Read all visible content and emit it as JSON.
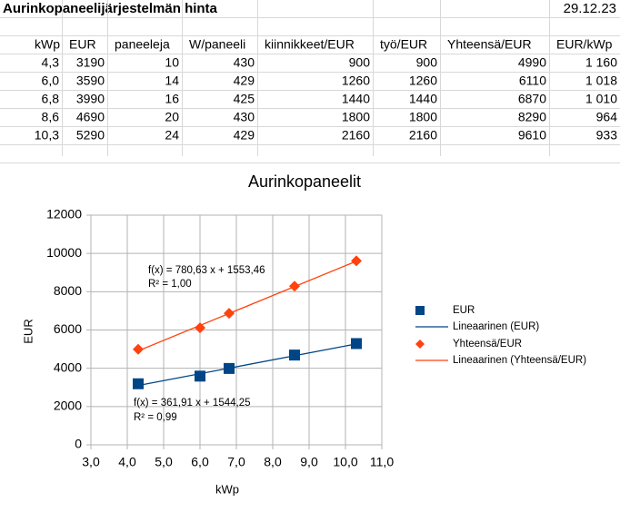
{
  "sheet": {
    "title": "Aurinkopaneelijärjestelmän hinta",
    "date": "29.12.23",
    "headers": [
      "kWp",
      "EUR",
      "paneeleja",
      "W/paneeli",
      "kiinnikkeet/EUR",
      "työ/EUR",
      "Yhteensä/EUR",
      "EUR/kWp"
    ],
    "rows": [
      [
        "4,3",
        "3190",
        "10",
        "430",
        "900",
        "900",
        "4990",
        "1 160"
      ],
      [
        "6,0",
        "3590",
        "14",
        "429",
        "1260",
        "1260",
        "6110",
        "1 018"
      ],
      [
        "6,8",
        "3990",
        "16",
        "425",
        "1440",
        "1440",
        "6870",
        "1 010"
      ],
      [
        "8,6",
        "4690",
        "20",
        "430",
        "1800",
        "1800",
        "8290",
        "964"
      ],
      [
        "10,3",
        "5290",
        "24",
        "429",
        "2160",
        "2160",
        "9610",
        "933"
      ]
    ]
  },
  "chart_data": {
    "type": "scatter",
    "title": "Aurinkopaneelit",
    "xlabel": "kWp",
    "ylabel": "EUR",
    "grid": true,
    "x": [
      4.3,
      6.0,
      6.8,
      8.6,
      10.3
    ],
    "xlim": [
      3,
      11
    ],
    "xticks": [
      {
        "value": 3,
        "label": "3,0"
      },
      {
        "value": 4,
        "label": "4,0"
      },
      {
        "value": 5,
        "label": "5,0"
      },
      {
        "value": 6,
        "label": "6,0"
      },
      {
        "value": 7,
        "label": "7,0"
      },
      {
        "value": 8,
        "label": "8,0"
      },
      {
        "value": 9,
        "label": "9,0"
      },
      {
        "value": 10,
        "label": "10,0"
      },
      {
        "value": 11,
        "label": "11,0"
      }
    ],
    "ylim": [
      0,
      12000
    ],
    "yticks": [
      0,
      2000,
      4000,
      6000,
      8000,
      10000,
      12000
    ],
    "series": [
      {
        "name": "EUR",
        "color": "#004586",
        "marker": "square",
        "values": [
          3190,
          3590,
          3990,
          4690,
          5290
        ],
        "trendline": {
          "name": "Lineaarinen (EUR)",
          "slope": 361.91,
          "intercept": 1544.25,
          "equation": "f(x) = 361,91 x + 1544,25",
          "r2": "R² = 0,99"
        }
      },
      {
        "name": "Yhteensä/EUR",
        "color": "#ff420e",
        "marker": "diamond",
        "values": [
          4990,
          6110,
          6870,
          8290,
          9610
        ],
        "trendline": {
          "name": "Lineaarinen (Yhteensä/EUR)",
          "slope": 780.63,
          "intercept": 1553.46,
          "equation": "f(x) = 780,63 x + 1553,46",
          "r2": "R² = 1,00"
        }
      }
    ]
  }
}
